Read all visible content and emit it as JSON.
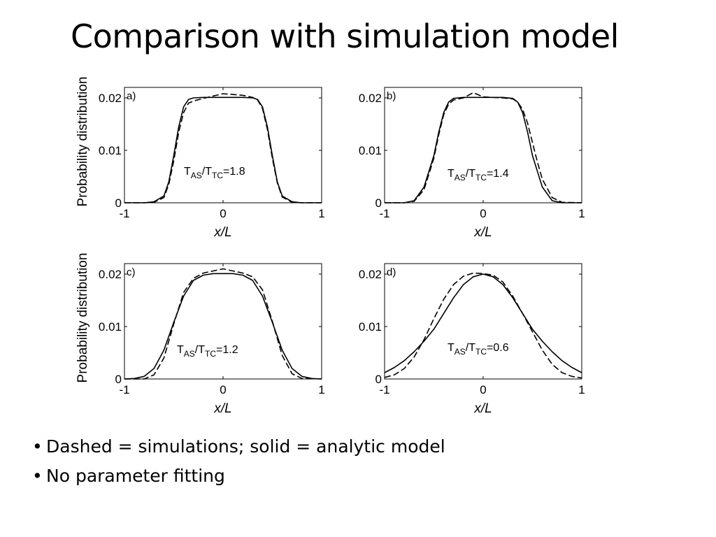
{
  "slide": {
    "title": "Comparison with simulation model",
    "bullets": [
      "Dashed = simulations; solid = analytic model",
      "No parameter fitting"
    ]
  },
  "chart_data": [
    {
      "type": "line",
      "panel_label": "a)",
      "annotation": {
        "main": "T",
        "sub1": "AS",
        "sep": "/T",
        "sub2": "TC",
        "value": "=1.8"
      },
      "xlabel": "x/L",
      "ylabel": "Probability distribution",
      "xlim": [
        -1,
        1
      ],
      "ylim": [
        0,
        0.022
      ],
      "xticks": [
        "-1",
        "0",
        "1"
      ],
      "yticks": [
        "0",
        "0.01",
        "0.02"
      ],
      "series": [
        {
          "style": "solid",
          "x": [
            -1,
            -0.8,
            -0.7,
            -0.6,
            -0.55,
            -0.5,
            -0.45,
            -0.4,
            -0.35,
            -0.3,
            -0.2,
            0,
            0.2,
            0.3,
            0.35,
            0.4,
            0.45,
            0.5,
            0.55,
            0.6,
            0.7,
            0.8,
            1
          ],
          "y": [
            0,
            0,
            0.0002,
            0.0013,
            0.004,
            0.009,
            0.0145,
            0.0183,
            0.0197,
            0.02,
            0.0201,
            0.0201,
            0.0201,
            0.02,
            0.0197,
            0.0183,
            0.0145,
            0.009,
            0.004,
            0.0013,
            0.0002,
            0,
            0
          ]
        },
        {
          "style": "dashed",
          "x": [
            -1,
            -0.8,
            -0.7,
            -0.6,
            -0.55,
            -0.5,
            -0.45,
            -0.4,
            -0.35,
            -0.3,
            -0.2,
            0,
            0.2,
            0.3,
            0.35,
            0.4,
            0.45,
            0.5,
            0.55,
            0.6,
            0.7,
            0.8,
            1
          ],
          "y": [
            0,
            0,
            0.0001,
            0.001,
            0.0035,
            0.008,
            0.0135,
            0.0172,
            0.019,
            0.0194,
            0.0199,
            0.0208,
            0.0205,
            0.0201,
            0.0196,
            0.018,
            0.014,
            0.0085,
            0.0038,
            0.0011,
            0.0001,
            0,
            0
          ]
        }
      ]
    },
    {
      "type": "line",
      "panel_label": "b)",
      "annotation": {
        "main": "T",
        "sub1": "AS",
        "sep": "/T",
        "sub2": "TC",
        "value": "=1.4"
      },
      "xlabel": "x/L",
      "ylabel": "",
      "xlim": [
        -1,
        1
      ],
      "ylim": [
        0,
        0.022
      ],
      "xticks": [
        "-1",
        "0",
        "1"
      ],
      "yticks": [
        "0",
        "0.01",
        "0.02"
      ],
      "series": [
        {
          "style": "solid",
          "x": [
            -1,
            -0.8,
            -0.7,
            -0.6,
            -0.5,
            -0.45,
            -0.4,
            -0.35,
            -0.3,
            -0.2,
            0,
            0.2,
            0.3,
            0.35,
            0.4,
            0.45,
            0.5,
            0.6,
            0.7,
            0.8,
            1
          ],
          "y": [
            0,
            0,
            0.0004,
            0.003,
            0.009,
            0.0135,
            0.0172,
            0.0192,
            0.0199,
            0.0201,
            0.0201,
            0.0201,
            0.0199,
            0.0192,
            0.0172,
            0.0135,
            0.009,
            0.003,
            0.0004,
            0,
            0
          ]
        },
        {
          "style": "dashed",
          "x": [
            -1,
            -0.8,
            -0.7,
            -0.6,
            -0.5,
            -0.45,
            -0.4,
            -0.35,
            -0.3,
            -0.2,
            -0.1,
            0,
            0.1,
            0.2,
            0.3,
            0.35,
            0.4,
            0.45,
            0.5,
            0.55,
            0.6,
            0.7,
            0.8,
            1
          ],
          "y": [
            0,
            0,
            0.0003,
            0.0025,
            0.0085,
            0.013,
            0.0168,
            0.0188,
            0.0196,
            0.02,
            0.021,
            0.0202,
            0.0201,
            0.02,
            0.0198,
            0.0192,
            0.0178,
            0.0152,
            0.0115,
            0.0078,
            0.0045,
            0.001,
            0.0001,
            0
          ]
        }
      ]
    },
    {
      "type": "line",
      "panel_label": "c)",
      "annotation": {
        "main": "T",
        "sub1": "AS",
        "sep": "/T",
        "sub2": "TC",
        "value": "=1.2"
      },
      "xlabel": "x/L",
      "ylabel": "Probability distribution",
      "xlim": [
        -1,
        1
      ],
      "ylim": [
        0,
        0.022
      ],
      "xticks": [
        "-1",
        "0",
        "1"
      ],
      "yticks": [
        "0",
        "0.01",
        "0.02"
      ],
      "series": [
        {
          "style": "solid",
          "x": [
            -1,
            -0.9,
            -0.8,
            -0.7,
            -0.6,
            -0.5,
            -0.4,
            -0.3,
            -0.2,
            -0.1,
            0,
            0.1,
            0.2,
            0.3,
            0.4,
            0.5,
            0.6,
            0.7,
            0.8,
            0.9,
            1
          ],
          "y": [
            0,
            0.0001,
            0.0005,
            0.002,
            0.0055,
            0.0108,
            0.0158,
            0.0188,
            0.0198,
            0.0201,
            0.0201,
            0.0201,
            0.0198,
            0.0188,
            0.0158,
            0.0108,
            0.0055,
            0.002,
            0.0005,
            0.0001,
            0
          ]
        },
        {
          "style": "dashed",
          "x": [
            -1,
            -0.8,
            -0.7,
            -0.6,
            -0.5,
            -0.4,
            -0.3,
            -0.2,
            -0.1,
            0,
            0.1,
            0.2,
            0.3,
            0.4,
            0.5,
            0.6,
            0.7,
            0.8,
            1
          ],
          "y": [
            0,
            0,
            0.0008,
            0.004,
            0.0105,
            0.0165,
            0.0192,
            0.0202,
            0.0206,
            0.021,
            0.0206,
            0.0202,
            0.0195,
            0.017,
            0.011,
            0.0045,
            0.001,
            0.0001,
            0
          ]
        }
      ]
    },
    {
      "type": "line",
      "panel_label": "d)",
      "annotation": {
        "main": "T",
        "sub1": "AS",
        "sep": "/T",
        "sub2": "TC",
        "value": "=0.6"
      },
      "xlabel": "x/L",
      "ylabel": "",
      "xlim": [
        -1,
        1
      ],
      "ylim": [
        0,
        0.022
      ],
      "xticks": [
        "-1",
        "0",
        "1"
      ],
      "yticks": [
        "0",
        "0.01",
        "0.02"
      ],
      "series": [
        {
          "style": "solid",
          "x": [
            -1,
            -0.9,
            -0.8,
            -0.7,
            -0.6,
            -0.5,
            -0.4,
            -0.3,
            -0.2,
            -0.1,
            0,
            0.1,
            0.2,
            0.3,
            0.4,
            0.5,
            0.6,
            0.7,
            0.8,
            0.9,
            1
          ],
          "y": [
            0.0012,
            0.0022,
            0.0035,
            0.0052,
            0.0072,
            0.0095,
            0.0125,
            0.0155,
            0.018,
            0.0195,
            0.02,
            0.0195,
            0.018,
            0.0155,
            0.0125,
            0.0095,
            0.0072,
            0.0052,
            0.0035,
            0.0022,
            0.0012
          ]
        },
        {
          "style": "dashed",
          "x": [
            -1,
            -0.9,
            -0.8,
            -0.7,
            -0.6,
            -0.5,
            -0.4,
            -0.3,
            -0.2,
            -0.1,
            0,
            0.1,
            0.2,
            0.3,
            0.4,
            0.5,
            0.6,
            0.7,
            0.8,
            0.9,
            1
          ],
          "y": [
            0.0003,
            0.0008,
            0.002,
            0.0042,
            0.0075,
            0.0115,
            0.0152,
            0.018,
            0.0196,
            0.0202,
            0.0201,
            0.0198,
            0.0185,
            0.0158,
            0.0125,
            0.009,
            0.0055,
            0.0028,
            0.0012,
            0.0005,
            0.0002
          ]
        }
      ]
    }
  ]
}
